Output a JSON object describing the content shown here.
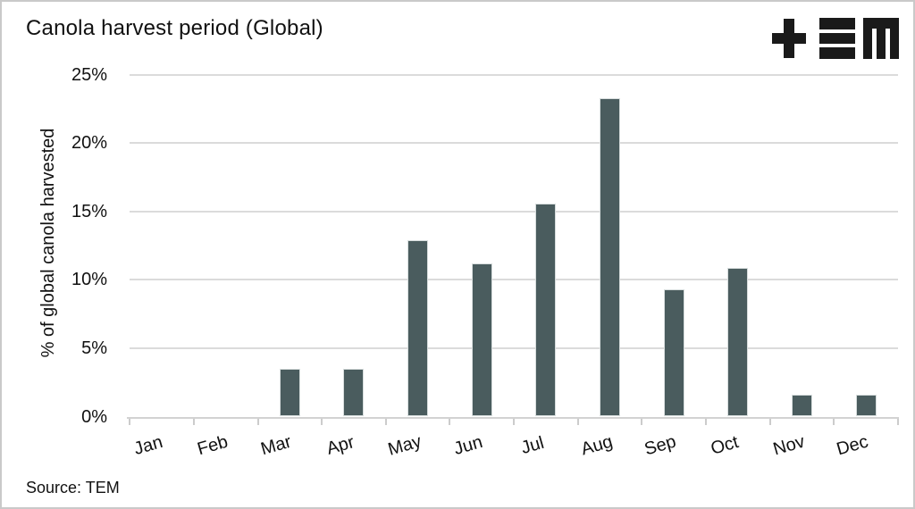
{
  "title": "Canola harvest period (Global)",
  "source": "Source: TEM",
  "logo": {
    "name": "tem-logo",
    "color": "#1a1a1a"
  },
  "colors": {
    "bar": "#4a5c5e",
    "gridline": "#dbdbdb",
    "axis": "#d2d2d2",
    "text": "#111111",
    "frame_border": "#c9c9c9"
  },
  "chart_data": {
    "type": "bar",
    "title": "Canola harvest period (Global)",
    "categories": [
      "Jan",
      "Feb",
      "Mar",
      "Apr",
      "May",
      "Jun",
      "Jul",
      "Aug",
      "Sep",
      "Oct",
      "Nov",
      "Dec"
    ],
    "values": [
      0,
      0,
      3.5,
      3.5,
      12.9,
      11.2,
      15.6,
      23.3,
      9.3,
      10.9,
      1.6,
      1.6
    ],
    "xlabel": "",
    "ylabel": "% of global canola harvested",
    "ylim": [
      0,
      25
    ],
    "ytick_values": [
      0,
      5,
      10,
      15,
      20,
      25
    ],
    "ytick_suffix": "%",
    "grid": true,
    "legend": false
  }
}
